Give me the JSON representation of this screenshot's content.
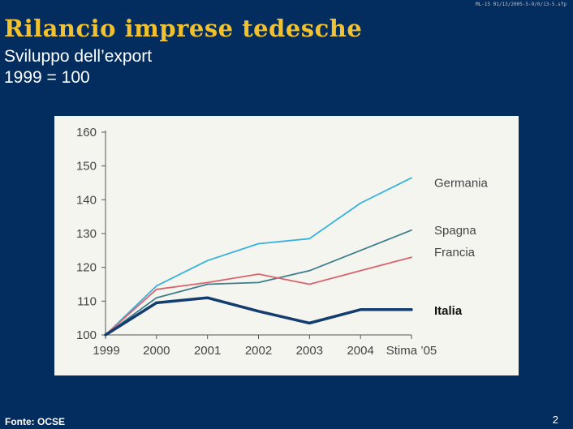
{
  "slide": {
    "code": "ML-15 01/13/2005-5-9/0/13-5.sfp",
    "title": "Rilancio imprese tedesche",
    "subtitle_line1": "Sviluppo dell’export",
    "subtitle_line2": "1999 = 100",
    "source": "Fonte: OCSE",
    "page_number": "2"
  },
  "colors": {
    "background": "#022d5e",
    "title": "#f2c12e",
    "Germania": "#35b1df",
    "Spagna": "#3d7d8c",
    "Francia": "#d86470",
    "Italia": "#123d6e"
  },
  "chart_data": {
    "type": "line",
    "categories": [
      "1999",
      "2000",
      "2001",
      "2002",
      "2003",
      "2004",
      "Stima ’05"
    ],
    "ylim": [
      100,
      160
    ],
    "yticks": [
      100,
      110,
      120,
      130,
      140,
      150,
      160
    ],
    "grid": false,
    "legend": "inline-right",
    "series": [
      {
        "name": "Germania",
        "values": [
          100,
          114.5,
          122,
          127,
          128.5,
          139,
          146.5
        ]
      },
      {
        "name": "Spagna",
        "values": [
          100,
          111,
          115,
          115.5,
          119,
          125,
          131
        ]
      },
      {
        "name": "Francia",
        "values": [
          100,
          113.5,
          115.5,
          118,
          115,
          119,
          123
        ]
      },
      {
        "name": "Italia",
        "values": [
          100,
          109.5,
          111,
          107,
          103.5,
          107.5,
          107.5
        ]
      }
    ]
  }
}
